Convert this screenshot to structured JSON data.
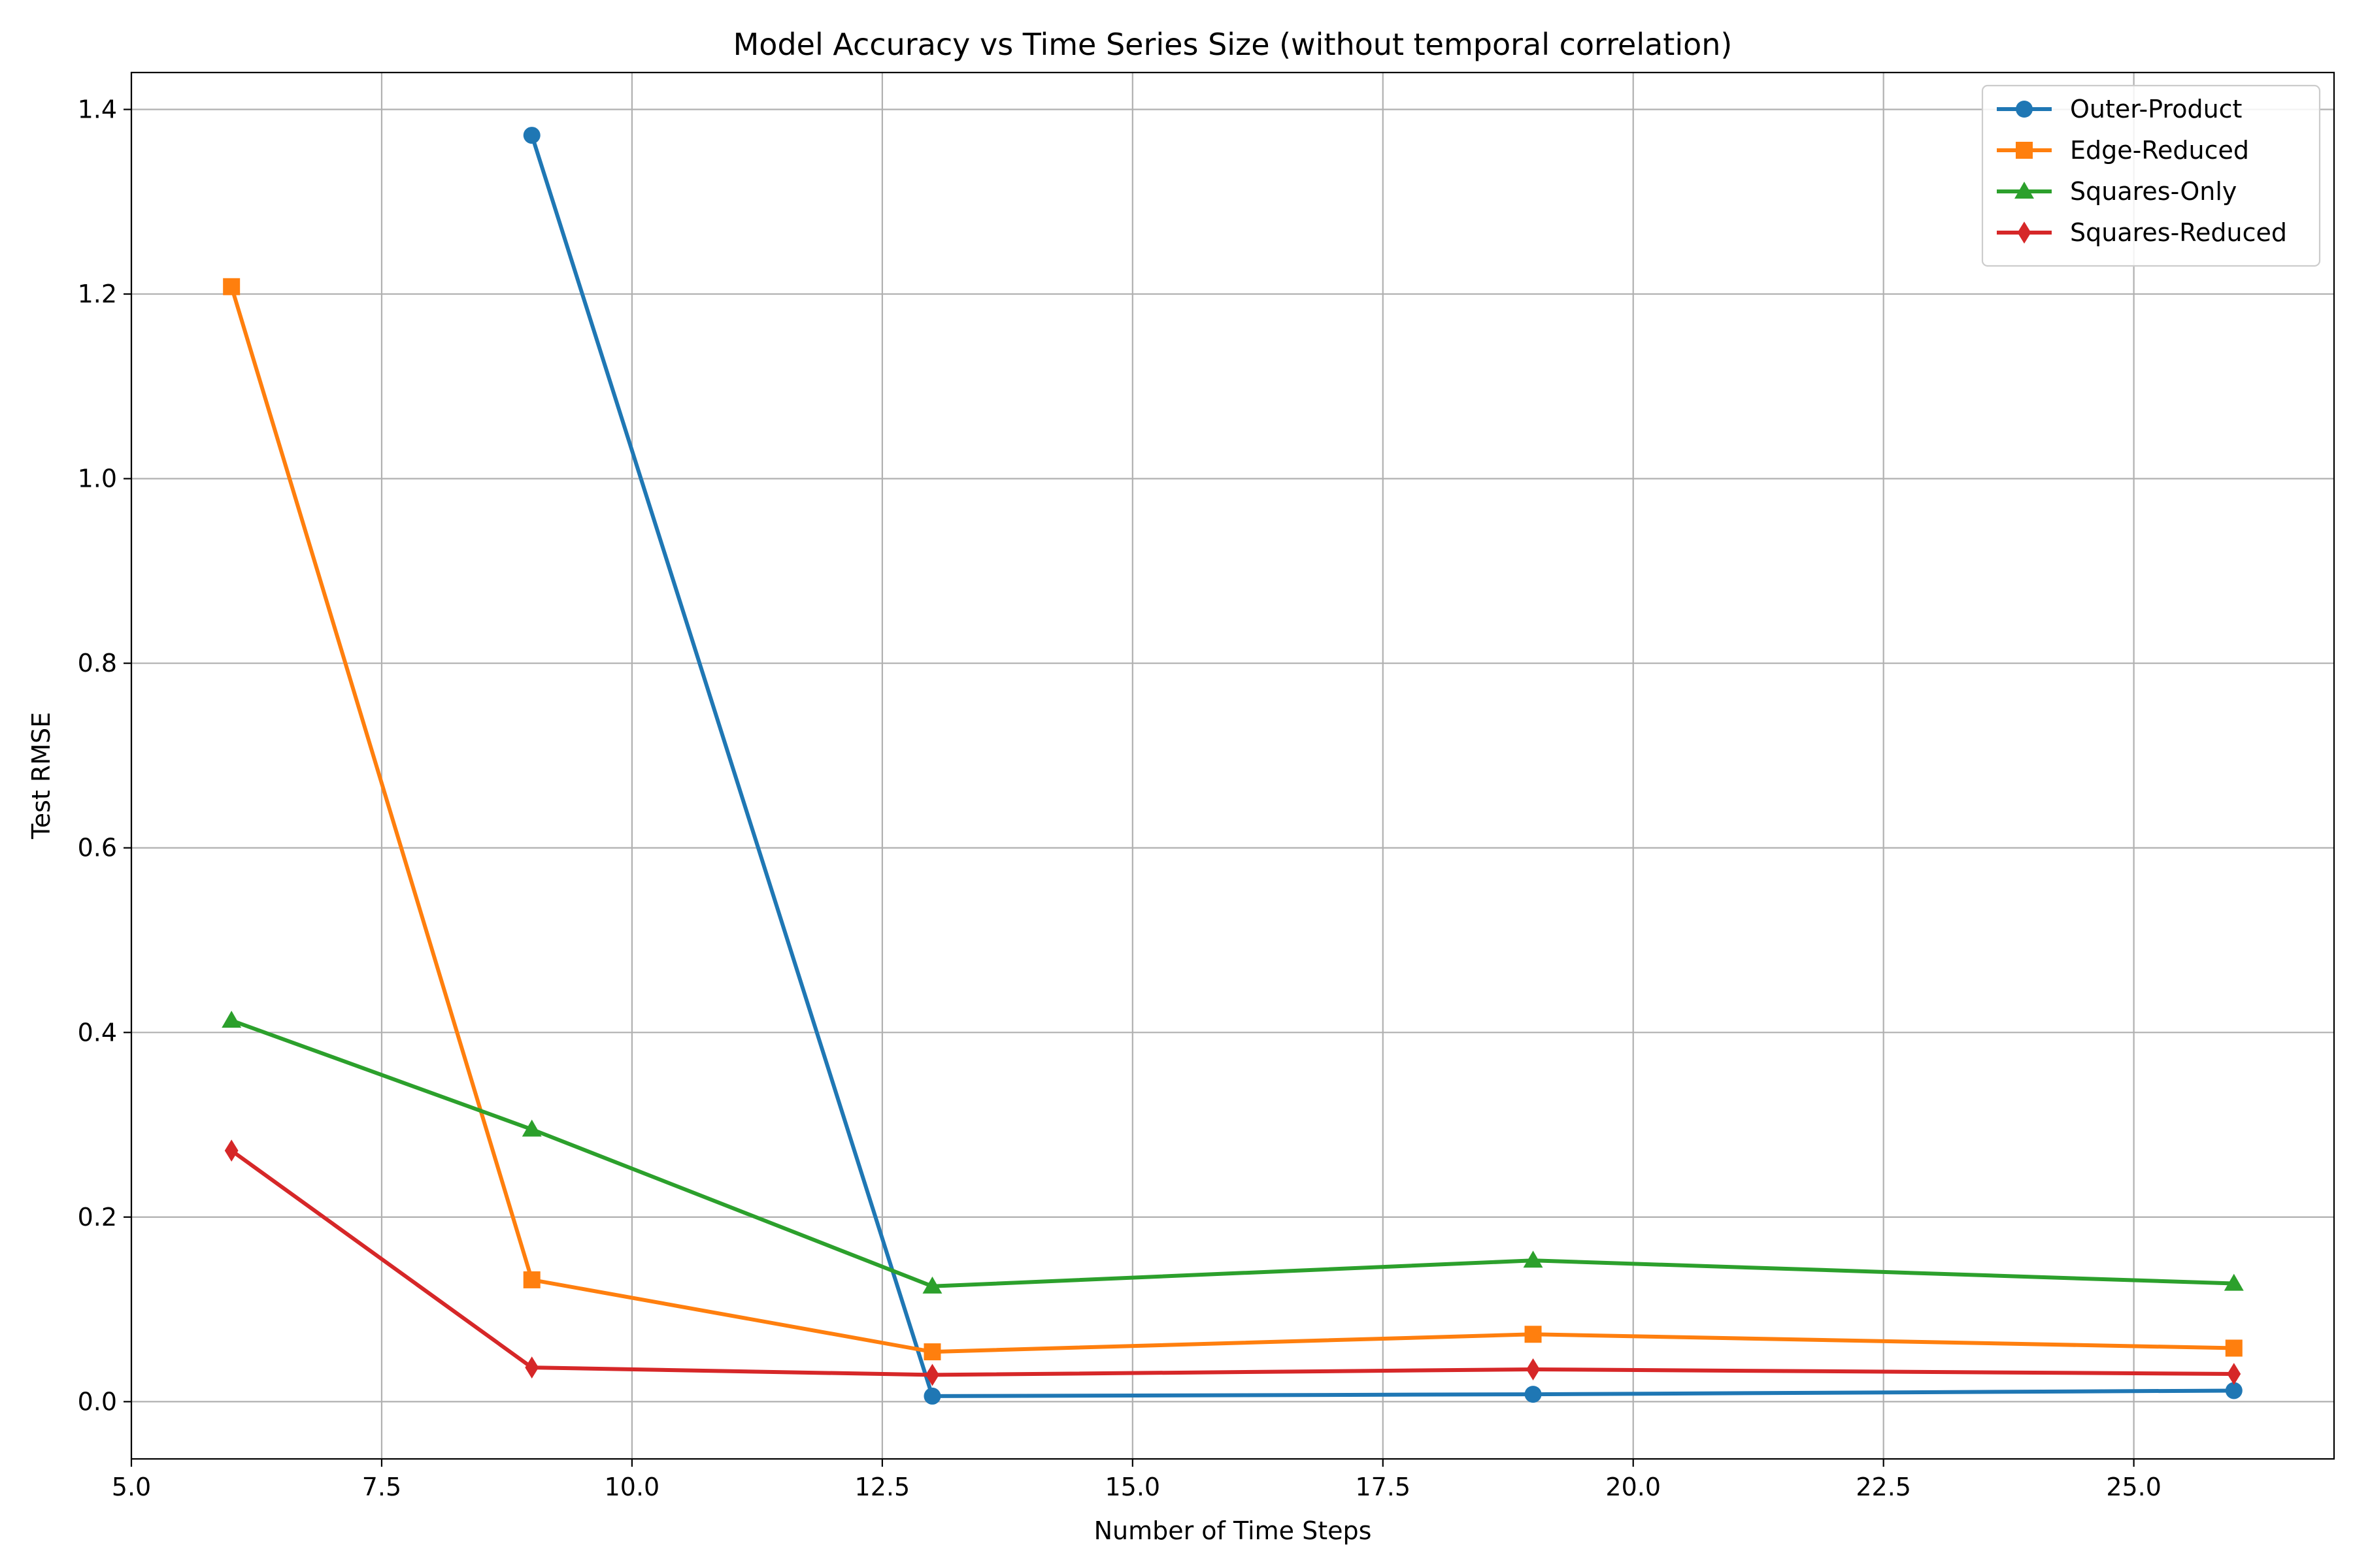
{
  "chart_data": {
    "type": "line",
    "title": "Model Accuracy vs Time Series Size (without temporal correlation)",
    "xlabel": "Number of Time Steps",
    "ylabel": "Test RMSE",
    "xlim": [
      5.0,
      27.0
    ],
    "ylim": [
      -0.062,
      1.44
    ],
    "xticks": [
      5.0,
      7.5,
      10.0,
      12.5,
      15.0,
      17.5,
      20.0,
      22.5,
      25.0
    ],
    "xtick_labels": [
      "5.0",
      "7.5",
      "10.0",
      "12.5",
      "15.0",
      "17.5",
      "20.0",
      "22.5",
      "25.0"
    ],
    "yticks": [
      0.0,
      0.2,
      0.4,
      0.6,
      0.8,
      1.0,
      1.2,
      1.4
    ],
    "ytick_labels": [
      "0.0",
      "0.2",
      "0.4",
      "0.6",
      "0.8",
      "1.0",
      "1.2",
      "1.4"
    ],
    "grid": true,
    "legend_position": "top-right",
    "series": [
      {
        "name": "Outer-Product",
        "color": "#1f77b4",
        "marker": "circle",
        "x": [
          9,
          13,
          19,
          26
        ],
        "values": [
          1.372,
          0.006,
          0.008,
          0.012
        ]
      },
      {
        "name": "Edge-Reduced",
        "color": "#ff7f0e",
        "marker": "square",
        "x": [
          6,
          9,
          13,
          19,
          26
        ],
        "values": [
          1.208,
          0.132,
          0.054,
          0.073,
          0.058
        ]
      },
      {
        "name": "Squares-Only",
        "color": "#2ca02c",
        "marker": "triangle",
        "x": [
          6,
          9,
          13,
          19,
          26
        ],
        "values": [
          0.413,
          0.295,
          0.125,
          0.153,
          0.128
        ]
      },
      {
        "name": "Squares-Reduced",
        "color": "#d62728",
        "marker": "diamond",
        "x": [
          6,
          9,
          13,
          19,
          26
        ],
        "values": [
          0.272,
          0.037,
          0.029,
          0.035,
          0.03
        ]
      }
    ]
  }
}
